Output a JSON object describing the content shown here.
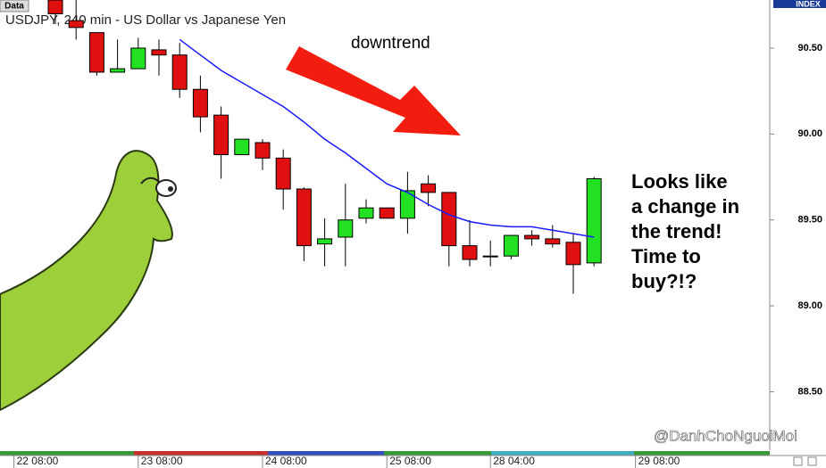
{
  "chart_data": {
    "type": "candlestick",
    "title": "USDJPY, 240 min - US Dollar vs Japanese Yen",
    "data_tab": "Data",
    "axis_tab": "INDEX",
    "annotation": "downtrend",
    "callout": [
      "Looks like",
      "a change in",
      "the trend!",
      "Time to",
      "buy?!?"
    ],
    "watermark": "@DanhChoNguoiMoi",
    "categories": [
      "22 08:00",
      null,
      null,
      null,
      null,
      null,
      "23 08:00",
      null,
      null,
      null,
      null,
      null,
      "24 08:00",
      null,
      null,
      null,
      null,
      null,
      "25 08:00",
      null,
      null,
      null,
      null,
      "28 04:00",
      null,
      null,
      null,
      null,
      null,
      null,
      "29 08:00"
    ],
    "open": [
      null,
      null,
      90.78,
      90.66,
      90.59,
      90.36,
      90.38,
      90.49,
      90.46,
      90.26,
      90.11,
      89.88,
      89.95,
      89.86,
      89.68,
      89.36,
      89.4,
      89.51,
      89.57,
      89.51,
      89.71,
      89.66,
      89.35,
      89.29,
      89.29,
      89.41,
      89.39,
      89.37,
      89.25,
      null,
      null
    ],
    "high": [
      null,
      null,
      90.78,
      90.78,
      90.59,
      90.55,
      90.56,
      90.55,
      90.53,
      90.34,
      90.16,
      89.97,
      89.97,
      89.91,
      89.69,
      89.51,
      89.71,
      89.62,
      89.57,
      89.78,
      89.76,
      89.66,
      89.5,
      89.38,
      89.41,
      89.44,
      89.47,
      89.42,
      89.75,
      null,
      null
    ],
    "low": [
      null,
      null,
      90.64,
      90.55,
      90.34,
      90.36,
      90.38,
      90.34,
      90.21,
      90.01,
      89.74,
      89.88,
      89.79,
      89.56,
      89.26,
      89.23,
      89.23,
      89.48,
      89.51,
      89.42,
      89.58,
      89.23,
      89.23,
      89.23,
      89.27,
      89.35,
      89.34,
      89.07,
      89.23,
      null,
      null
    ],
    "close": [
      null,
      null,
      90.7,
      90.62,
      90.36,
      90.38,
      90.5,
      90.46,
      90.26,
      90.1,
      89.88,
      89.97,
      89.86,
      89.68,
      89.35,
      89.39,
      89.5,
      89.57,
      89.51,
      89.67,
      89.66,
      89.35,
      89.27,
      89.29,
      89.41,
      89.39,
      89.36,
      89.24,
      89.74,
      null,
      null
    ],
    "up_color": "#22e022",
    "down_color": "#e01010",
    "ma": {
      "color": "#1a1aff",
      "values": [
        null,
        null,
        null,
        null,
        null,
        null,
        null,
        null,
        90.55,
        90.46,
        90.37,
        90.3,
        90.23,
        90.16,
        90.07,
        89.97,
        89.89,
        89.8,
        89.71,
        89.66,
        89.59,
        89.53,
        89.49,
        89.47,
        89.46,
        89.46,
        89.44,
        89.42,
        89.4,
        null,
        null
      ]
    },
    "ylim": [
      88.16,
      90.78
    ],
    "yticks": [
      {
        "value": 88.5,
        "label": "88.50"
      },
      {
        "value": 89,
        "label": "89.00"
      },
      {
        "value": 89.5,
        "label": "89.50"
      },
      {
        "value": 90,
        "label": "90.00"
      },
      {
        "value": 90.5,
        "label": "90.50"
      }
    ]
  }
}
